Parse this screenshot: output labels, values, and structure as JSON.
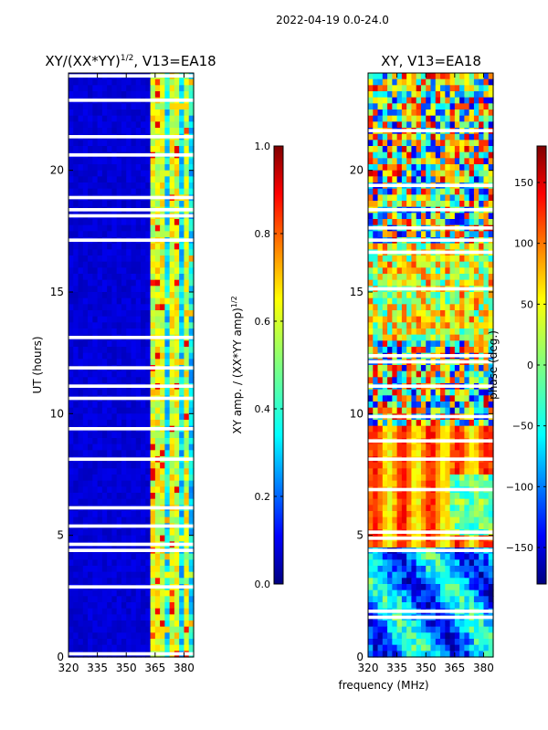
{
  "figure_title": "2022-04-19 0.0-24.0",
  "chart_data": [
    {
      "type": "heatmap",
      "title": "XY/(XX*YY)^1/2, V13=EA18",
      "title_main": "XY/(XX*YY)",
      "title_exp": "1/2",
      "title_tail": ", V13=EA18",
      "xlabel": "",
      "ylabel": "UT (hours)",
      "xlim": [
        320,
        385
      ],
      "ylim": [
        0,
        24
      ],
      "xticks": [
        320,
        335,
        350,
        365,
        380
      ],
      "yticks": [
        0,
        5,
        10,
        15,
        20
      ],
      "quantity": "amplitude",
      "colorbar": {
        "label": "XY amp. / (XX*YY amp)^1/2",
        "label_main": "XY amp. / (XX*YY amp)",
        "label_exp": "1/2",
        "range": [
          0.0,
          1.0
        ],
        "ticks": [
          "0.0",
          "0.2",
          "0.4",
          "0.6",
          "0.8",
          "1.0"
        ],
        "colormap": "jet"
      }
    },
    {
      "type": "heatmap",
      "title": "XY, V13=EA18",
      "xlabel": "frequency (MHz)",
      "ylabel": "",
      "xlim": [
        320,
        385
      ],
      "ylim": [
        0,
        24
      ],
      "xticks": [
        320,
        335,
        350,
        365,
        380
      ],
      "yticks": [
        0,
        5,
        10,
        15,
        20
      ],
      "quantity": "phase",
      "colorbar": {
        "label": "phase (deg.)",
        "range": [
          -180,
          180
        ],
        "ticks": [
          "−150",
          "−100",
          "−50",
          "0",
          "50",
          "100",
          "150"
        ],
        "colormap": "jet"
      }
    }
  ],
  "colors": {
    "jet": [
      "#00007f",
      "#0000ff",
      "#007fff",
      "#00ffff",
      "#7fff7f",
      "#ffff00",
      "#ff7f00",
      "#ff0000",
      "#7f0000"
    ],
    "background": "#ffffff",
    "axis": "#000000"
  }
}
